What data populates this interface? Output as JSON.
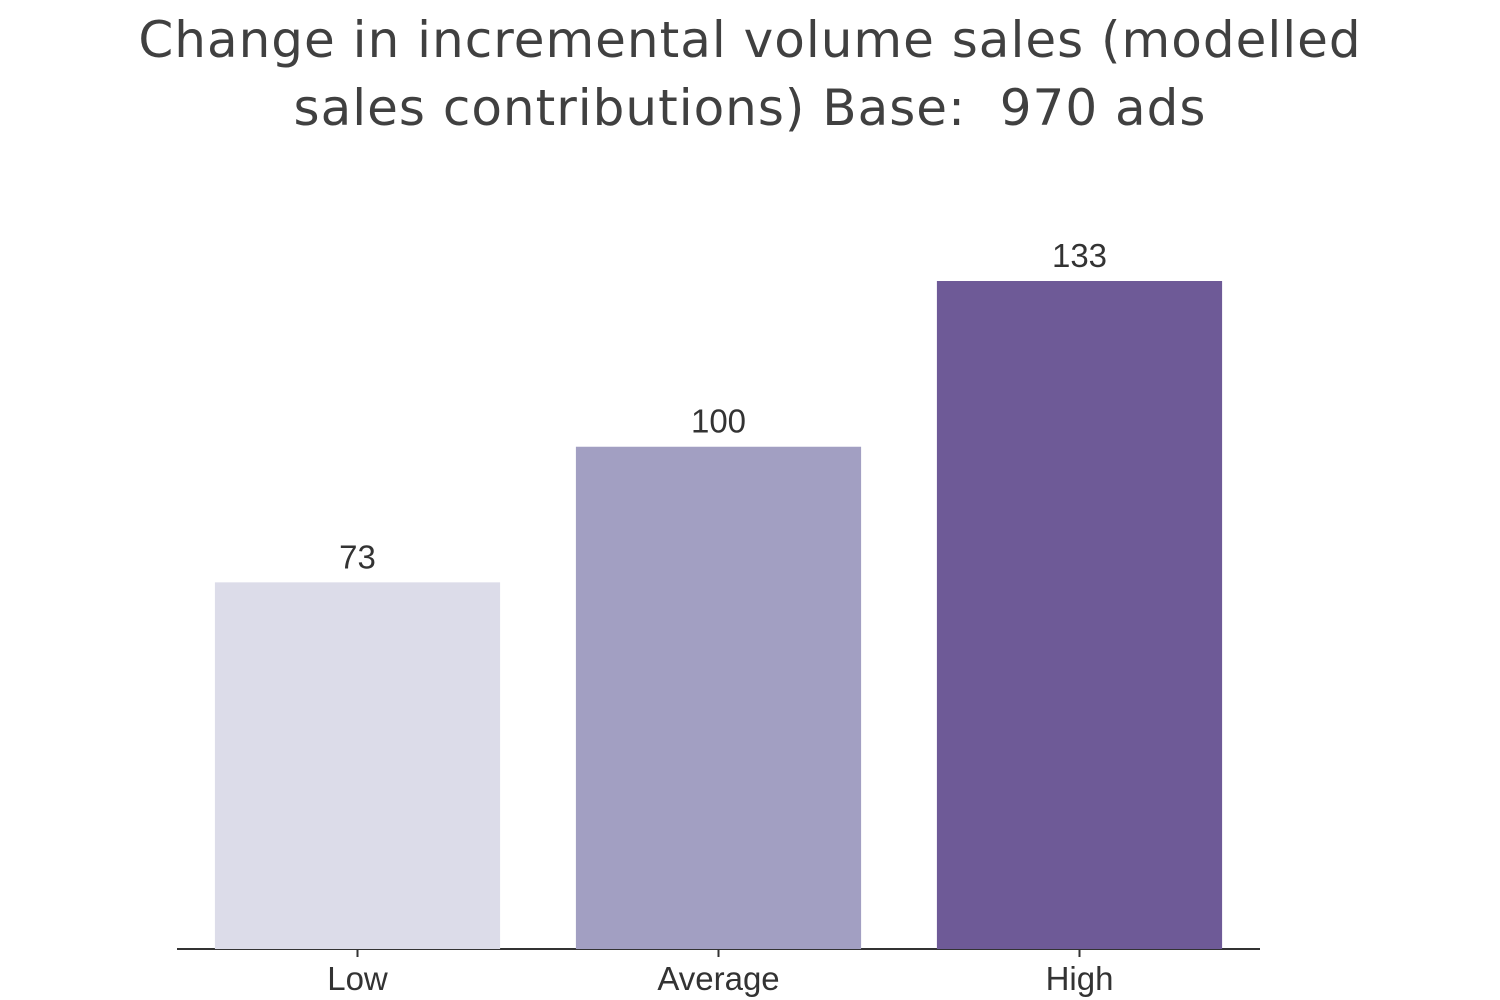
{
  "chart_data": {
    "type": "bar",
    "title": "Change in incremental volume sales (modelled sales contributions) Base:  970 ads",
    "categories": [
      "Low",
      "Average",
      "High"
    ],
    "values": [
      73,
      100,
      133
    ],
    "colors": [
      "#dcdce9",
      "#a29fc2",
      "#6e5a97"
    ]
  }
}
